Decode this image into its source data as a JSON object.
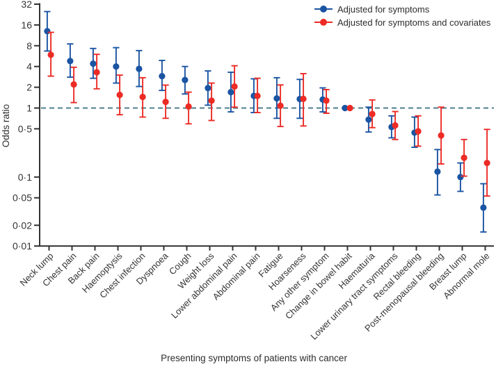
{
  "chart_data": {
    "type": "scatter",
    "subtype": "forest_plot_with_error_bars",
    "title": "",
    "xlabel": "Presenting symptoms of patients with cancer",
    "ylabel": "Odds ratio",
    "y_scale": "log2",
    "ylim": [
      0.01,
      32
    ],
    "y_ticks": [
      32,
      16,
      8,
      4,
      2,
      1,
      0.5,
      0.1,
      0.05,
      0.02,
      0.01
    ],
    "y_tick_labels": [
      "32",
      "16",
      "8",
      "4",
      "2",
      "1",
      "0·5",
      "0·1",
      "0·05",
      "0·02",
      "0·01"
    ],
    "reference_line_y": 1,
    "grid": false,
    "legend_position": "top-right",
    "categories": [
      "Neck lump",
      "Chest pain",
      "Back pain",
      "Haemoptysis",
      "Chest infection",
      "Dyspnoea",
      "Cough",
      "Weight loss",
      "Lower abdominal pain",
      "Abdominal pain",
      "Fatigue",
      "Hoarseness",
      "Any other symptom",
      "Change in bowel habit",
      "Haematuria",
      "Lower urinary tract symptoms",
      "Rectal bleeding",
      "Post-menopausal bleeding",
      "Breast lump",
      "Abnormal mole"
    ],
    "point_format": [
      "odds_ratio",
      "ci_lower",
      "ci_upper"
    ],
    "reference_category": "Change in bowel habit",
    "series": [
      {
        "name": "Adjusted for symptoms",
        "color": "#1a54a3",
        "points": [
          [
            13,
            6.7,
            25
          ],
          [
            4.8,
            2.8,
            8.5
          ],
          [
            4.4,
            2.7,
            7.3
          ],
          [
            4.0,
            2.3,
            7.5
          ],
          [
            3.7,
            2.05,
            6.8
          ],
          [
            2.9,
            1.8,
            4.9
          ],
          [
            2.55,
            1.6,
            4.0
          ],
          [
            1.95,
            1.1,
            3.45
          ],
          [
            1.7,
            0.88,
            3.3
          ],
          [
            1.5,
            0.86,
            2.65
          ],
          [
            1.38,
            0.71,
            2.75
          ],
          [
            1.35,
            0.71,
            2.6
          ],
          [
            1.33,
            0.88,
            1.96
          ],
          [
            1.0,
            1.0,
            1.0
          ],
          [
            0.68,
            0.45,
            1.03
          ],
          [
            0.53,
            0.37,
            0.77
          ],
          [
            0.44,
            0.27,
            0.74
          ],
          [
            0.12,
            0.055,
            0.25
          ],
          [
            0.1,
            0.062,
            0.16
          ],
          [
            0.036,
            0.016,
            0.08
          ]
        ]
      },
      {
        "name": "Adjusted for symptoms and covariates",
        "color": "#ec2b25",
        "points": [
          [
            5.9,
            2.9,
            12.5
          ],
          [
            2.2,
            1.2,
            3.9
          ],
          [
            3.3,
            1.9,
            6.0
          ],
          [
            1.55,
            0.8,
            3.0
          ],
          [
            1.45,
            0.74,
            2.75
          ],
          [
            1.23,
            0.71,
            2.15
          ],
          [
            1.05,
            0.59,
            1.7
          ],
          [
            1.28,
            0.66,
            2.3
          ],
          [
            2.05,
            1.03,
            4.1
          ],
          [
            1.5,
            0.86,
            2.7
          ],
          [
            1.08,
            0.54,
            2.16
          ],
          [
            1.36,
            0.55,
            3.15
          ],
          [
            1.28,
            0.84,
            1.85
          ],
          [
            1.0,
            1.0,
            1.0
          ],
          [
            0.82,
            0.52,
            1.31
          ],
          [
            0.56,
            0.35,
            0.89
          ],
          [
            0.46,
            0.28,
            0.77
          ],
          [
            0.4,
            0.155,
            1.03
          ],
          [
            0.19,
            0.103,
            0.35
          ],
          [
            0.16,
            0.053,
            0.49
          ]
        ]
      }
    ],
    "colors": {
      "reference_line": "#4f7e8e",
      "axis": "#333333",
      "text": "#333333"
    }
  }
}
